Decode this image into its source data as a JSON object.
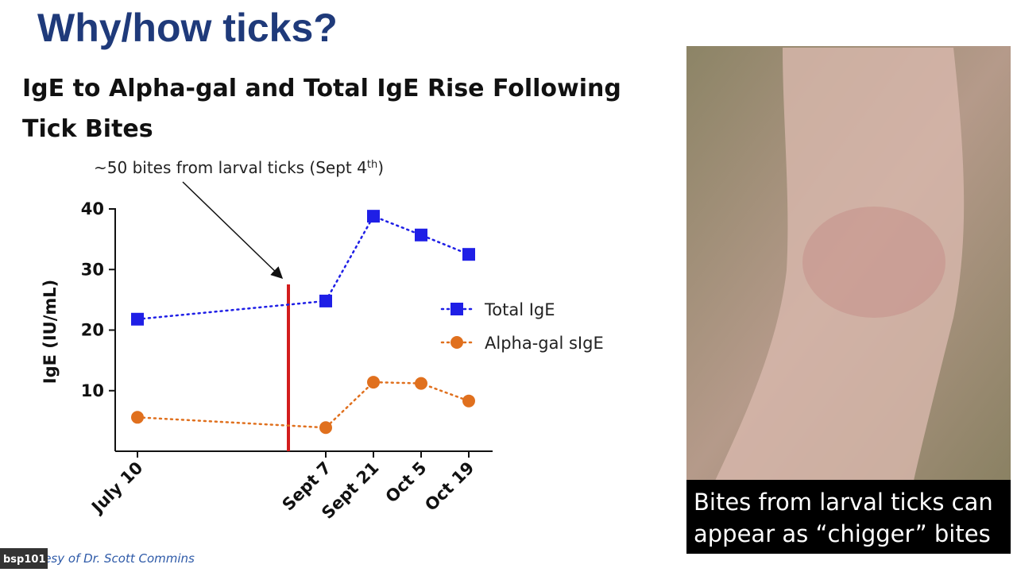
{
  "slide_title": "Why/how ticks?",
  "photo_caption": [
    "Bites from larval ticks can",
    "appear as “chigger” bites"
  ],
  "credit": "Courtesy of Dr. Scott Commins",
  "user_tag": "bsp101",
  "chart_data": {
    "type": "line",
    "title": [
      "IgE to Alpha-gal and Total IgE Rise Following",
      "Tick Bites"
    ],
    "annotation": [
      "~50 bites from larval ticks (Sept 4",
      "th",
      ")"
    ],
    "categories": [
      "July 10",
      "Sept 7",
      "Sept 21",
      "Oct 5",
      "Oct 19"
    ],
    "y_label": "IgE (IU/mL)",
    "ylim": [
      0,
      40
    ],
    "yticks": [
      10,
      20,
      30,
      40
    ],
    "series": [
      {
        "name": "Total IgE",
        "color": "#1f1fe6",
        "marker": "square",
        "values": [
          21.8,
          24.8,
          38.8,
          35.7,
          32.5
        ]
      },
      {
        "name": "Alpha-gal sIgE",
        "color": "#e0701e",
        "marker": "circle",
        "values": [
          5.6,
          3.9,
          11.4,
          11.2,
          8.3
        ]
      }
    ],
    "event_line_color": "#d21d1d"
  }
}
